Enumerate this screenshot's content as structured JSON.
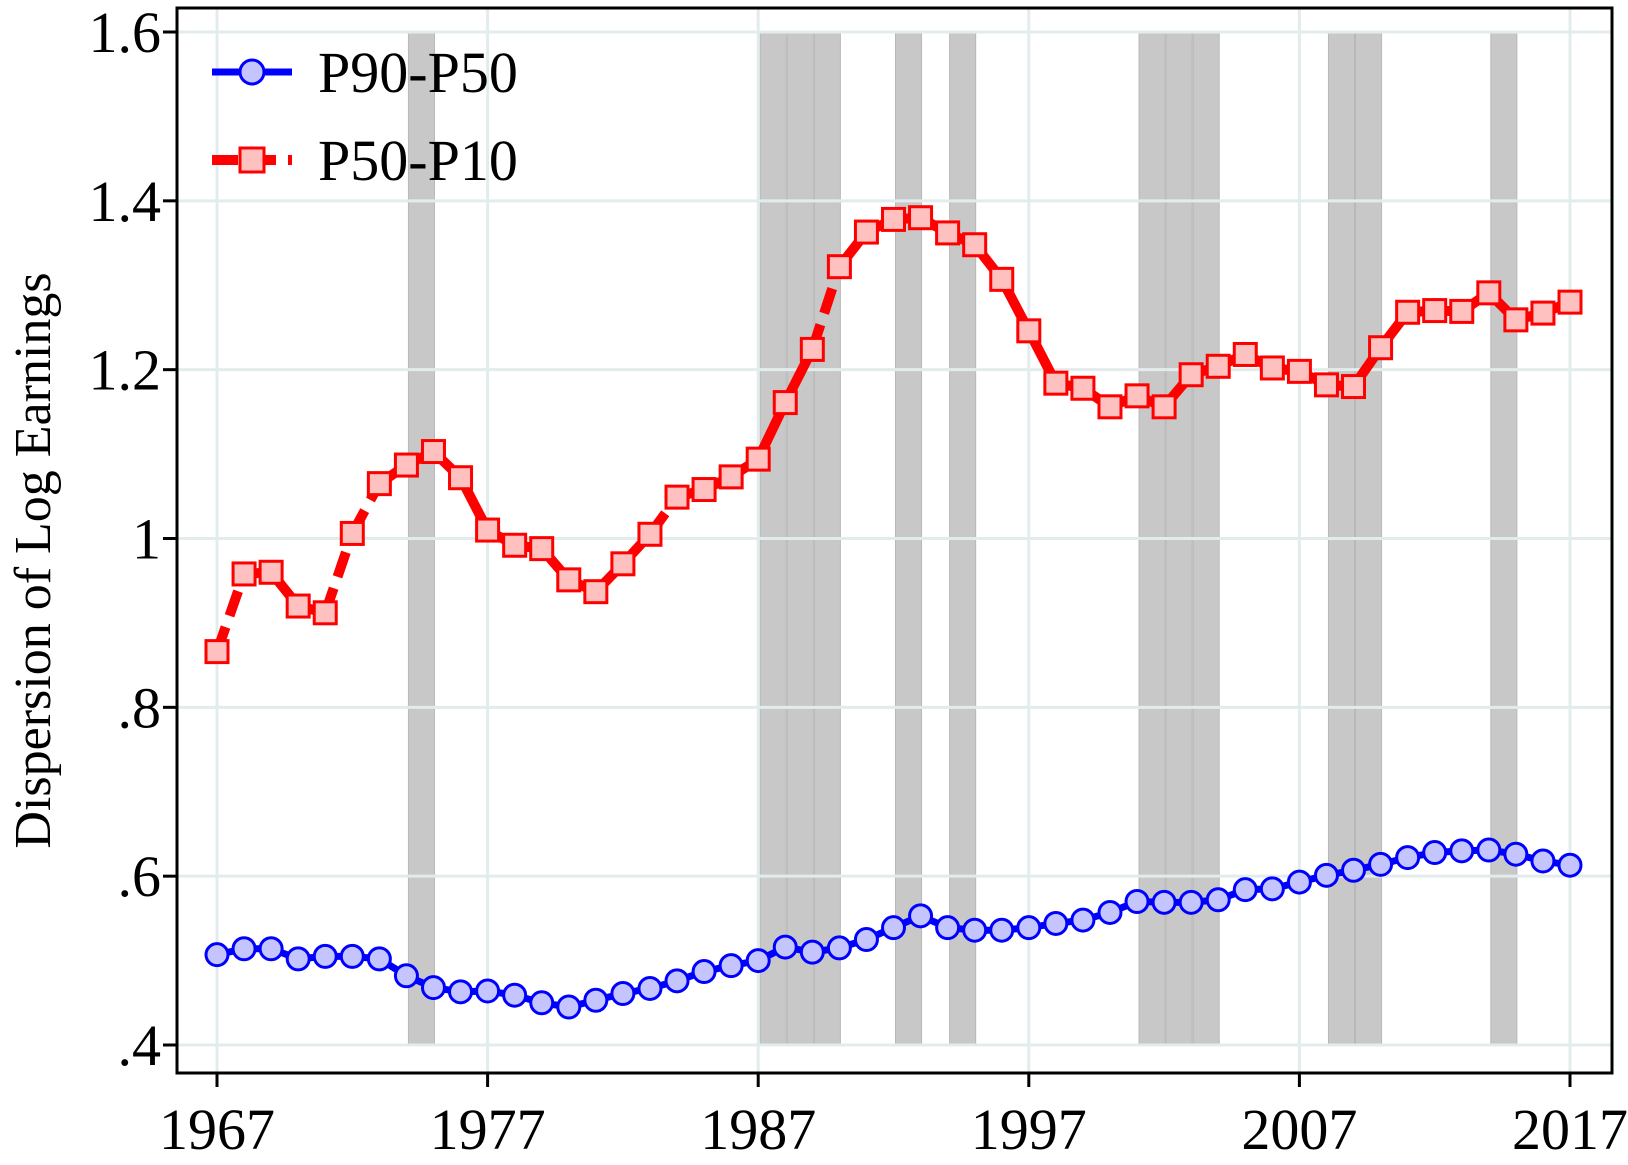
{
  "chart_data": {
    "type": "line",
    "ylabel": "Dispersion of Log Earnings",
    "xlabel": "",
    "xlim": [
      1967,
      2017
    ],
    "ylim": [
      0.4,
      1.6
    ],
    "x_ticks": [
      1967,
      1977,
      1987,
      1997,
      2007,
      2017
    ],
    "y_ticks": [
      {
        "value": 0.4,
        "label": ".4"
      },
      {
        "value": 0.6,
        "label": ".6"
      },
      {
        "value": 0.8,
        "label": ".8"
      },
      {
        "value": 1.0,
        "label": "1"
      },
      {
        "value": 1.2,
        "label": "1.2"
      },
      {
        "value": 1.4,
        "label": "1.4"
      },
      {
        "value": 1.6,
        "label": "1.6"
      }
    ],
    "grid": true,
    "legend_position": "top-left",
    "recession_years": [
      1974,
      1987,
      1988,
      1989,
      1992,
      1994,
      2001,
      2002,
      2003,
      2008,
      2009,
      2014
    ],
    "x": [
      1967,
      1968,
      1969,
      1970,
      1971,
      1972,
      1973,
      1974,
      1975,
      1976,
      1977,
      1978,
      1979,
      1980,
      1981,
      1982,
      1983,
      1984,
      1985,
      1986,
      1987,
      1988,
      1989,
      1990,
      1991,
      1992,
      1993,
      1994,
      1995,
      1996,
      1997,
      1998,
      1999,
      2000,
      2001,
      2002,
      2003,
      2004,
      2005,
      2006,
      2007,
      2008,
      2009,
      2010,
      2011,
      2012,
      2013,
      2014,
      2015,
      2016,
      2017
    ],
    "series": [
      {
        "name": "P90-P50",
        "color": "#0000ff",
        "marker": "circle",
        "values": [
          0.507,
          0.514,
          0.514,
          0.502,
          0.505,
          0.505,
          0.502,
          0.482,
          0.468,
          0.463,
          0.464,
          0.459,
          0.45,
          0.445,
          0.453,
          0.461,
          0.467,
          0.476,
          0.487,
          0.494,
          0.5,
          0.516,
          0.51,
          0.515,
          0.525,
          0.539,
          0.553,
          0.539,
          0.536,
          0.536,
          0.539,
          0.544,
          0.548,
          0.557,
          0.57,
          0.569,
          0.569,
          0.572,
          0.584,
          0.585,
          0.593,
          0.601,
          0.607,
          0.614,
          0.622,
          0.628,
          0.63,
          0.631,
          0.626,
          0.618,
          0.613
        ],
        "gaps_after": []
      },
      {
        "name": "P50-P10",
        "color": "#ff0000",
        "marker": "square",
        "values": [
          0.866,
          0.958,
          0.96,
          0.92,
          0.912,
          1.006,
          1.065,
          1.087,
          1.103,
          1.072,
          1.01,
          0.992,
          0.988,
          0.951,
          0.937,
          0.97,
          1.005,
          1.049,
          1.058,
          1.073,
          1.094,
          1.161,
          1.224,
          1.322,
          1.363,
          1.378,
          1.38,
          1.362,
          1.348,
          1.307,
          1.246,
          1.184,
          1.178,
          1.156,
          1.169,
          1.156,
          1.194,
          1.204,
          1.218,
          1.202,
          1.198,
          1.182,
          1.18,
          1.226,
          1.268,
          1.27,
          1.269,
          1.291,
          1.259,
          1.267,
          1.28
        ],
        "gaps_after": [
          1967,
          1970,
          1971,
          1972,
          1983,
          1989,
          2003
        ]
      }
    ]
  }
}
